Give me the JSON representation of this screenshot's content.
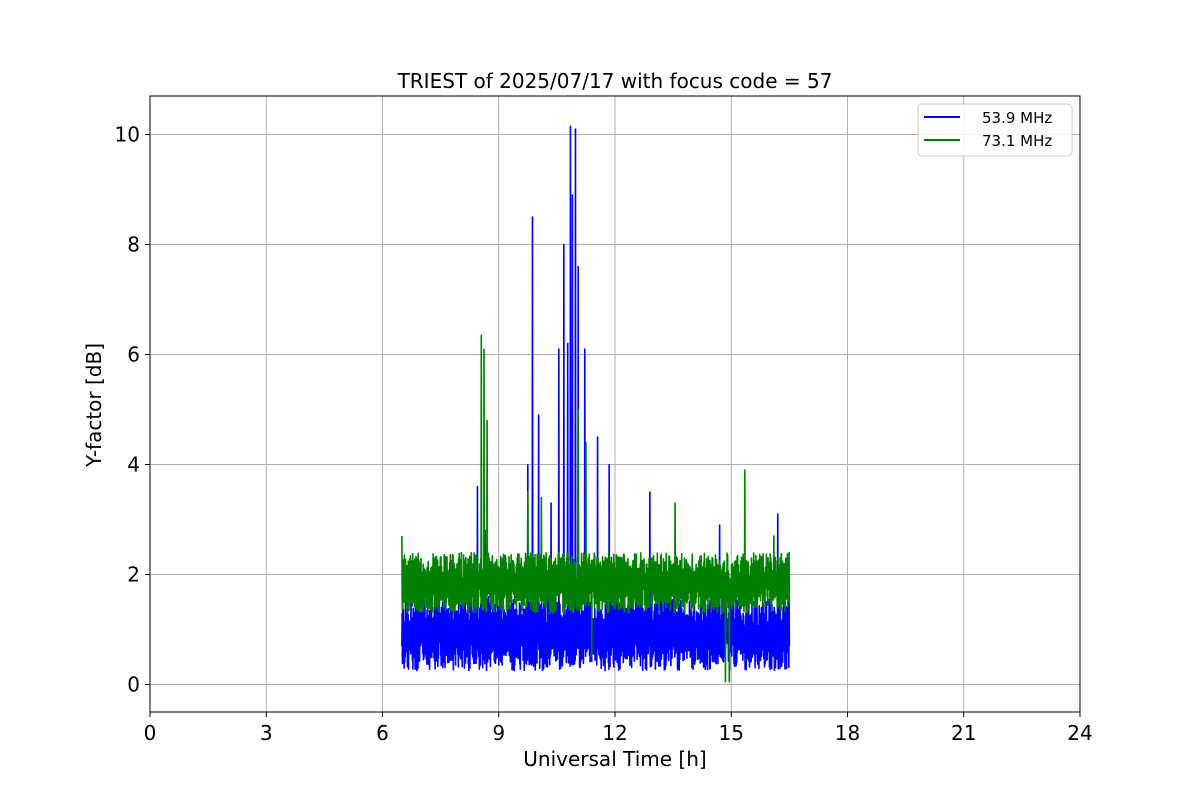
{
  "chart_data": {
    "type": "line",
    "title": "TRIEST of 2025/07/17 with focus code = 57",
    "xlabel": "Universal Time [h]",
    "ylabel": "Y-factor [dB]",
    "xlim": [
      0,
      24
    ],
    "ylim": [
      -0.5,
      10.7
    ],
    "xticks": [
      0,
      3,
      6,
      9,
      12,
      15,
      18,
      21,
      24
    ],
    "yticks": [
      0,
      2,
      4,
      6,
      8,
      10
    ],
    "grid": true,
    "legend_position": "top-right",
    "data_range_x": [
      6.5,
      16.5
    ],
    "series": [
      {
        "name": "53.9 MHz",
        "color": "#0000ff",
        "band_low": 0.25,
        "band_high": 1.6,
        "peaks": [
          {
            "x": 8.45,
            "y": 3.6
          },
          {
            "x": 8.65,
            "y": 2.8
          },
          {
            "x": 9.75,
            "y": 4.0
          },
          {
            "x": 9.87,
            "y": 8.5
          },
          {
            "x": 10.03,
            "y": 4.9
          },
          {
            "x": 10.35,
            "y": 3.3
          },
          {
            "x": 10.55,
            "y": 6.1
          },
          {
            "x": 10.68,
            "y": 8.0
          },
          {
            "x": 10.78,
            "y": 6.2
          },
          {
            "x": 10.85,
            "y": 10.15
          },
          {
            "x": 10.9,
            "y": 8.9
          },
          {
            "x": 10.98,
            "y": 10.1
          },
          {
            "x": 11.05,
            "y": 7.6
          },
          {
            "x": 11.22,
            "y": 6.1
          },
          {
            "x": 11.55,
            "y": 4.5
          },
          {
            "x": 11.85,
            "y": 4.0
          },
          {
            "x": 12.9,
            "y": 3.5
          },
          {
            "x": 14.7,
            "y": 2.9
          },
          {
            "x": 16.2,
            "y": 3.1
          }
        ]
      },
      {
        "name": "73.1 MHz",
        "color": "#008000",
        "band_low": 1.3,
        "band_high": 2.4,
        "peaks": [
          {
            "x": 6.5,
            "y": 2.7
          },
          {
            "x": 8.55,
            "y": 6.35
          },
          {
            "x": 8.62,
            "y": 6.1
          },
          {
            "x": 8.7,
            "y": 4.8
          },
          {
            "x": 9.75,
            "y": 3.5
          },
          {
            "x": 10.1,
            "y": 3.4
          },
          {
            "x": 11.05,
            "y": 5.0
          },
          {
            "x": 11.25,
            "y": 4.4
          },
          {
            "x": 13.55,
            "y": 3.3
          },
          {
            "x": 15.35,
            "y": 3.9
          },
          {
            "x": 16.1,
            "y": 2.7
          }
        ],
        "dips": [
          {
            "x": 14.85,
            "y": 0.05
          },
          {
            "x": 14.95,
            "y": 0.05
          },
          {
            "x": 11.4,
            "y": 0.5
          }
        ]
      }
    ]
  }
}
